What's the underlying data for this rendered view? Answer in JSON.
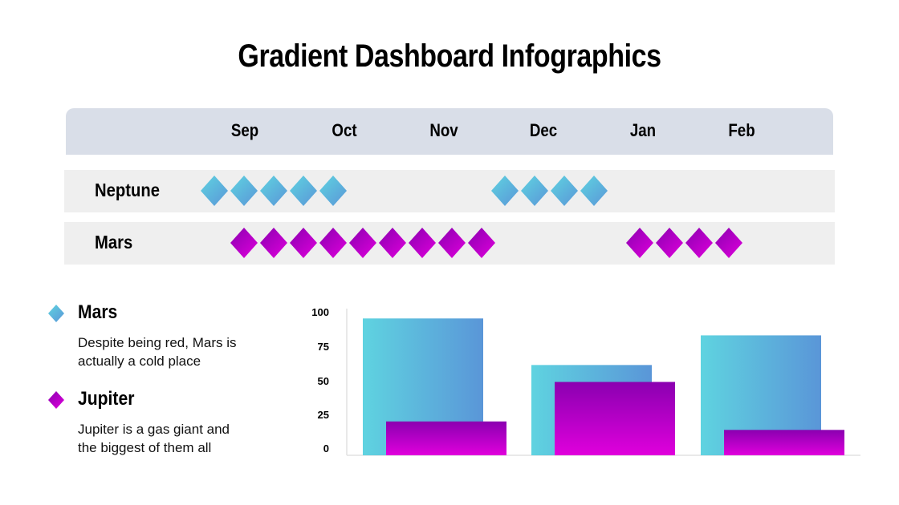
{
  "title": "Gradient Dashboard Infographics",
  "timeline": {
    "months": [
      "Sep",
      "Oct",
      "Nov",
      "Dec",
      "Jan",
      "Feb"
    ],
    "rows": [
      {
        "label": "Neptune",
        "color": "blue",
        "diamond_groups": [
          5,
          4
        ]
      },
      {
        "label": "Mars",
        "color": "magenta",
        "diamond_groups": [
          9,
          4
        ]
      }
    ]
  },
  "legend": [
    {
      "title": "Mars",
      "text_lines": [
        "Despite being red, Mars is",
        "actually a cold place"
      ],
      "color": "#5ab8dc"
    },
    {
      "title": "Jupiter",
      "text_lines": [
        "Jupiter is a gas giant and",
        "the biggest of them all"
      ],
      "color": "#b000c8"
    }
  ],
  "chart_data": {
    "type": "bar",
    "categories": [
      "",
      "",
      ""
    ],
    "series": [
      {
        "values": [
          97,
          64,
          85
        ],
        "colors": [
          "#5fd3e0",
          "#5a96d8"
        ]
      },
      {
        "values": [
          24,
          52,
          18
        ],
        "colors": [
          "#8a00b0",
          "#e000dc"
        ]
      }
    ],
    "yticks": [
      "100",
      "75",
      "50",
      "25",
      "0"
    ],
    "ylim": [
      0,
      100
    ],
    "grid": false
  }
}
